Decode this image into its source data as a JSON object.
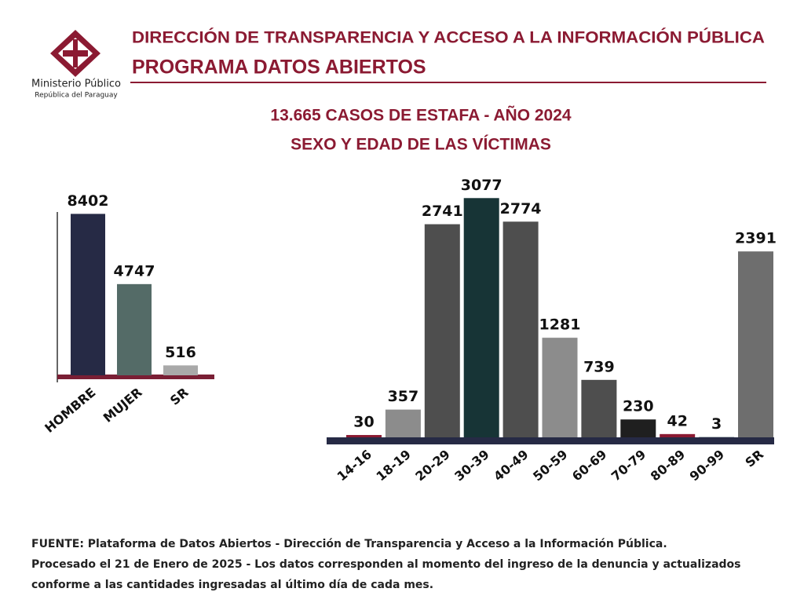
{
  "header": {
    "org": "Ministerio Público",
    "org_sub": "República del Paraguay",
    "title": "DIRECCIÓN DE TRANSPARENCIA Y ACCESO A LA INFORMACIÓN PÚBLICA",
    "program": "PROGRAMA  DATOS ABIERTOS",
    "chart_title": "13.665 CASOS DE ESTAFA  - AÑO 2024",
    "chart_subtitle": "SEXO Y EDAD DE LAS VÍCTIMAS"
  },
  "chart_data": [
    {
      "type": "bar",
      "categories": [
        "HOMBRE",
        "MUJER",
        "SR"
      ],
      "values": [
        8402,
        4747,
        516
      ],
      "colors": [
        "#262a45",
        "#546b67",
        "#a9a9a9"
      ],
      "ylim": [
        0,
        8500
      ]
    },
    {
      "type": "bar",
      "categories": [
        "14-16",
        "18-19",
        "20-29",
        "30-39",
        "40-49",
        "50-59",
        "60-69",
        "70-79",
        "80-89",
        "90-99",
        "SR"
      ],
      "values": [
        30,
        357,
        2741,
        3077,
        2774,
        1281,
        739,
        230,
        42,
        3,
        2391
      ],
      "colors": [
        "#8b1a32",
        "#8c8c8c",
        "#4e4e4e",
        "#173436",
        "#4e4e4e",
        "#8c8c8c",
        "#4e4e4e",
        "#1f1f1f",
        "#8b1a32",
        "#173436",
        "#6e6e6e"
      ],
      "ylim": [
        0,
        3100
      ]
    }
  ],
  "footer": [
    "FUENTE: Plataforma de Datos Abiertos - Dirección de Transparencia y Acceso a la Información Pública.",
    "Procesado el 21 de Enero de 2025 - Los datos corresponden al momento del ingreso de la denuncia y actualizados",
    "conforme a las cantidades ingresadas al último día de cada mes."
  ]
}
